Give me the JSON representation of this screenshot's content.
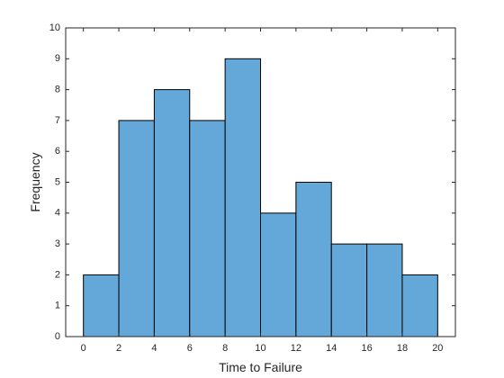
{
  "chart_data": {
    "type": "bar",
    "subtype": "histogram",
    "bin_edges": [
      0,
      2,
      4,
      6,
      8,
      10,
      12,
      14,
      16,
      18,
      20
    ],
    "values": [
      2,
      7,
      8,
      7,
      9,
      4,
      5,
      3,
      3,
      2
    ],
    "xlabel": "Time to Failure",
    "ylabel": "Frequency",
    "xlim": [
      -1,
      21
    ],
    "ylim": [
      0,
      10
    ],
    "xticks": [
      0,
      2,
      4,
      6,
      8,
      10,
      12,
      14,
      16,
      18,
      20
    ],
    "yticks": [
      0,
      1,
      2,
      3,
      4,
      5,
      6,
      7,
      8,
      9,
      10
    ],
    "grid": false,
    "bar_color": "#63a8d8",
    "edge_color": "#000000",
    "axis_color": "#262626"
  }
}
